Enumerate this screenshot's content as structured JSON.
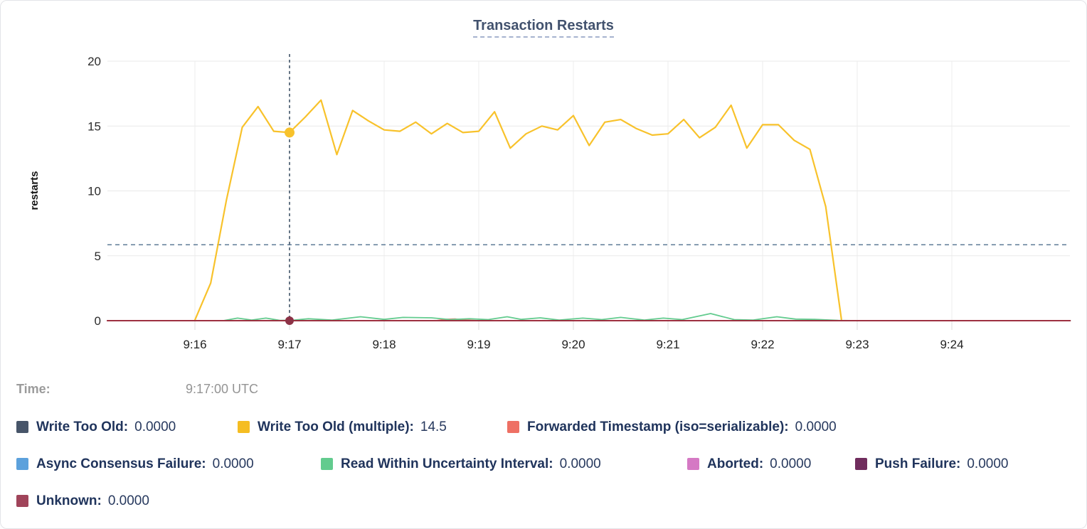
{
  "hover": {
    "time_label": "Time:",
    "time_value": "9:17:00 UTC",
    "crosshair_minute": 1.0,
    "highlight": {
      "series": "Write Too Old (multiple)",
      "value": 14.5
    },
    "highlight_zero_series": "Unknown"
  },
  "legend": {
    "rows": [
      [
        {
          "label": "Write Too Old:",
          "value": "0.0000",
          "color": "#475569"
        },
        {
          "label": "Write Too Old (multiple):",
          "value": "14.5",
          "color": "#f5bd22"
        },
        {
          "label": "Forwarded Timestamp (iso=serializable):",
          "value": "0.0000",
          "color": "#ee7064"
        }
      ],
      [
        {
          "label": "Async Consensus Failure:",
          "value": "0.0000",
          "color": "#5ca1dc"
        },
        {
          "label": "Read Within Uncertainty Interval:",
          "value": "0.0000",
          "color": "#62cb8e"
        },
        {
          "label": "Aborted:",
          "value": "0.0000",
          "color": "#d579c4"
        },
        {
          "label": "Push Failure:",
          "value": "0.0000",
          "color": "#702d5d"
        }
      ],
      [
        {
          "label": "Unknown:",
          "value": "0.0000",
          "color": "#a0445a"
        }
      ]
    ]
  },
  "chart_data": {
    "type": "line",
    "title": "Transaction Restarts",
    "ylabel": "restarts",
    "xlabel": "",
    "ylim": [
      0,
      20
    ],
    "yticks": [
      0,
      5,
      10,
      15,
      20
    ],
    "xtick_labels": [
      "9:16",
      "9:17",
      "9:18",
      "9:19",
      "9:20",
      "9:21",
      "9:22",
      "9:23",
      "9:24"
    ],
    "xtick_minutes": [
      0,
      1,
      2,
      3,
      4,
      5,
      6,
      7,
      8
    ],
    "x_unit": "minutes after 9:16 UTC",
    "xlim_minutes": [
      -0.925,
      9.25
    ],
    "grid": true,
    "legend_position": "bottom",
    "avg_guide_value": 5.85,
    "series": [
      {
        "name": "Write Too Old",
        "color": "#475569",
        "width": 1.8,
        "points": [
          [
            -0.925,
            0
          ],
          [
            9.25,
            0
          ]
        ]
      },
      {
        "name": "Async Consensus Failure",
        "color": "#5ca1dc",
        "width": 1.8,
        "points": [
          [
            -0.925,
            0
          ],
          [
            9.25,
            0
          ]
        ]
      },
      {
        "name": "Aborted",
        "color": "#d579c4",
        "width": 1.8,
        "points": [
          [
            -0.925,
            0
          ],
          [
            9.25,
            0
          ]
        ]
      },
      {
        "name": "Push Failure",
        "color": "#702d5d",
        "width": 1.8,
        "points": [
          [
            -0.925,
            0
          ],
          [
            9.25,
            0
          ]
        ]
      },
      {
        "name": "Forwarded Timestamp (iso=serializable)",
        "color": "#ee7064",
        "width": 1.8,
        "points": [
          [
            -0.925,
            0
          ],
          [
            2.55,
            0
          ],
          [
            2.65,
            0.1
          ],
          [
            2.75,
            0.13
          ],
          [
            2.85,
            0.05
          ],
          [
            3.0,
            0
          ],
          [
            9.25,
            0
          ]
        ]
      },
      {
        "name": "Write Too Old (multiple)",
        "color": "#f8c22b",
        "width": 2.2,
        "points": [
          [
            0,
            0.05
          ],
          [
            0.167,
            2.9
          ],
          [
            0.333,
            9.3
          ],
          [
            0.5,
            14.9
          ],
          [
            0.667,
            16.5
          ],
          [
            0.833,
            14.6
          ],
          [
            1.0,
            14.5
          ],
          [
            1.167,
            15.7
          ],
          [
            1.333,
            17.0
          ],
          [
            1.5,
            12.8
          ],
          [
            1.667,
            16.2
          ],
          [
            1.833,
            15.4
          ],
          [
            2.0,
            14.7
          ],
          [
            2.167,
            14.6
          ],
          [
            2.333,
            15.3
          ],
          [
            2.5,
            14.4
          ],
          [
            2.667,
            15.2
          ],
          [
            2.833,
            14.5
          ],
          [
            3.0,
            14.6
          ],
          [
            3.167,
            16.1
          ],
          [
            3.333,
            13.3
          ],
          [
            3.5,
            14.4
          ],
          [
            3.667,
            15.0
          ],
          [
            3.833,
            14.7
          ],
          [
            4.0,
            15.8
          ],
          [
            4.167,
            13.5
          ],
          [
            4.333,
            15.3
          ],
          [
            4.5,
            15.5
          ],
          [
            4.667,
            14.8
          ],
          [
            4.833,
            14.3
          ],
          [
            5.0,
            14.4
          ],
          [
            5.167,
            15.5
          ],
          [
            5.333,
            14.1
          ],
          [
            5.5,
            14.9
          ],
          [
            5.667,
            16.6
          ],
          [
            5.833,
            13.3
          ],
          [
            6.0,
            15.1
          ],
          [
            6.167,
            15.1
          ],
          [
            6.333,
            13.9
          ],
          [
            6.5,
            13.2
          ],
          [
            6.667,
            8.8
          ],
          [
            6.833,
            0.1
          ]
        ]
      },
      {
        "name": "Read Within Uncertainty Interval",
        "color": "#62cb8e",
        "width": 1.8,
        "points": [
          [
            -0.3,
            0
          ],
          [
            0.3,
            0
          ],
          [
            0.45,
            0.2
          ],
          [
            0.6,
            0.05
          ],
          [
            0.75,
            0.2
          ],
          [
            0.9,
            0.02
          ],
          [
            1.05,
            0.05
          ],
          [
            1.2,
            0.15
          ],
          [
            1.45,
            0.05
          ],
          [
            1.75,
            0.3
          ],
          [
            2.0,
            0.1
          ],
          [
            2.2,
            0.25
          ],
          [
            2.5,
            0.22
          ],
          [
            2.7,
            0.08
          ],
          [
            2.9,
            0.15
          ],
          [
            3.1,
            0.08
          ],
          [
            3.3,
            0.3
          ],
          [
            3.45,
            0.1
          ],
          [
            3.65,
            0.22
          ],
          [
            3.85,
            0.05
          ],
          [
            4.1,
            0.2
          ],
          [
            4.3,
            0.08
          ],
          [
            4.5,
            0.25
          ],
          [
            4.75,
            0.05
          ],
          [
            4.95,
            0.2
          ],
          [
            5.15,
            0.08
          ],
          [
            5.45,
            0.55
          ],
          [
            5.7,
            0.08
          ],
          [
            5.9,
            0.05
          ],
          [
            6.15,
            0.3
          ],
          [
            6.35,
            0.12
          ],
          [
            6.55,
            0.1
          ],
          [
            6.8,
            0.02
          ],
          [
            7.0,
            0
          ],
          [
            9.25,
            0
          ]
        ]
      },
      {
        "name": "Unknown",
        "color": "#9d3040",
        "width": 2,
        "points": [
          [
            -0.925,
            0
          ],
          [
            9.25,
            0
          ]
        ]
      }
    ]
  }
}
